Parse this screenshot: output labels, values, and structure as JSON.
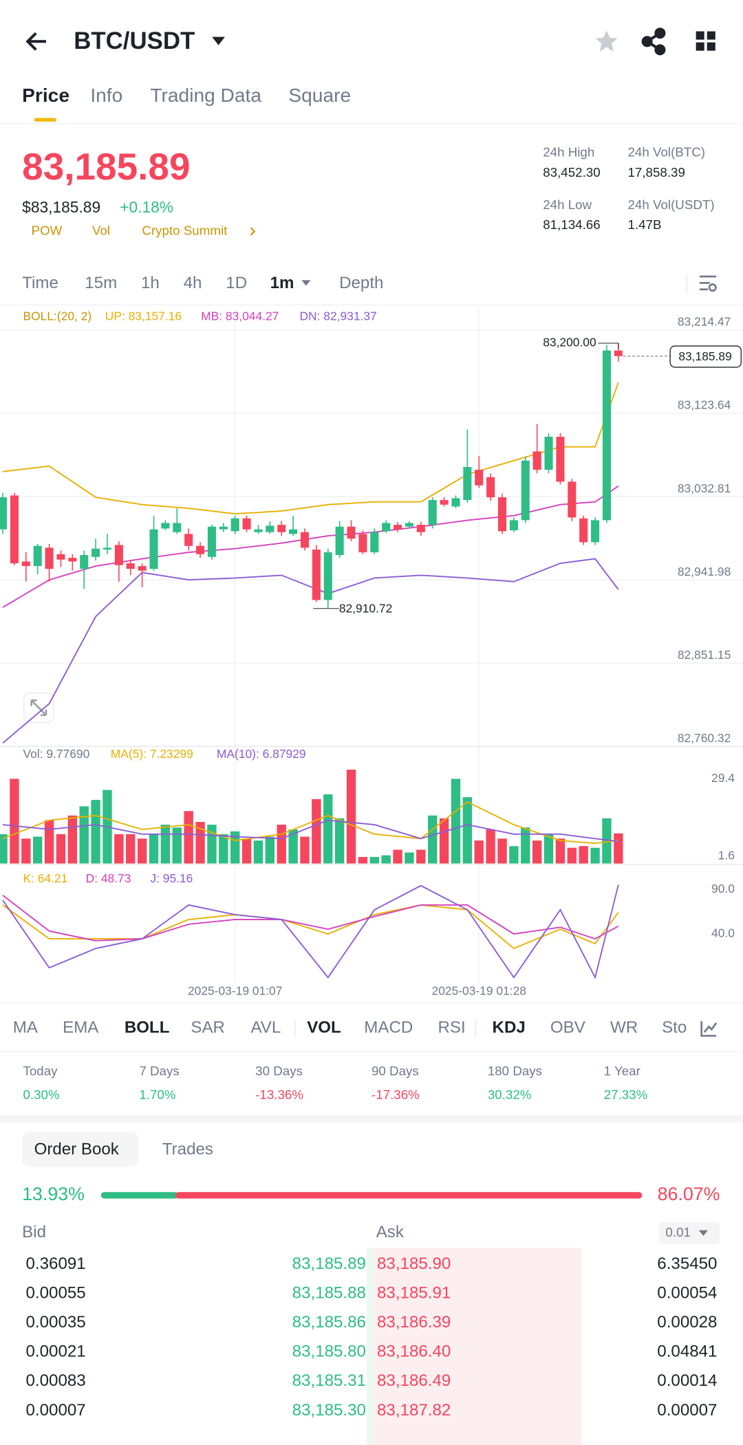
{
  "header": {
    "title": "BTC/USDT"
  },
  "tabs": [
    "Price",
    "Info",
    "Trading Data",
    "Square"
  ],
  "price": {
    "last": "83,185.89",
    "usd": "$83,185.89",
    "change": "+0.18%",
    "tags": [
      "POW",
      "Vol",
      "Crypto Summit"
    ]
  },
  "stats": [
    {
      "label": "24h High",
      "value": "83,452.30"
    },
    {
      "label": "24h Vol(BTC)",
      "value": "17,858.39"
    },
    {
      "label": "24h Low",
      "value": "81,134.66"
    },
    {
      "label": "24h Vol(USDT)",
      "value": "1.47B"
    }
  ],
  "timeframes": [
    "Time",
    "15m",
    "1h",
    "4h",
    "1D",
    "1m",
    "Depth"
  ],
  "active_timeframe": 5,
  "chart_data": [
    {
      "type": "candlestick",
      "legend_title": "BOLL:(20, 2)",
      "up_color": "#2ebd85",
      "down_color": "#f6465d",
      "ylim": [
        82760.32,
        83237.6
      ],
      "yticks": [
        {
          "value": 83214.47,
          "label": "83,214.47"
        },
        {
          "value": 83123.64,
          "label": "83,123.64"
        },
        {
          "value": 83032.81,
          "label": "83,032.81"
        },
        {
          "value": 82941.98,
          "label": "82,941.98"
        },
        {
          "value": 82851.15,
          "label": "82,851.15"
        },
        {
          "value": 82760.32,
          "label": "82,760.32"
        }
      ],
      "xticks": [
        {
          "value": 20,
          "label": "2025-03-19 01:07"
        },
        {
          "value": 41,
          "label": "2025-03-19 01:28"
        }
      ],
      "high": {
        "value": 83200,
        "label": "83,200.00",
        "index": 53
      },
      "low": {
        "value": 82910.72,
        "label": "82,910.72",
        "index": 28
      },
      "last": {
        "value": 83185.89,
        "label": "83,185.89"
      },
      "candles": [
        [
          82997,
          83037,
          82992,
          83032
        ],
        [
          83034,
          83037,
          82958,
          82960
        ],
        [
          82962,
          82972,
          82940,
          82957
        ],
        [
          82957,
          82981,
          82948,
          82979
        ],
        [
          82977,
          82981,
          82940,
          82954
        ],
        [
          82970,
          82974,
          82956,
          82964
        ],
        [
          82966,
          82970,
          82952,
          82962
        ],
        [
          82954,
          82974,
          82932,
          82969
        ],
        [
          82967,
          82987,
          82963,
          82976
        ],
        [
          82975,
          82992,
          82970,
          82977
        ],
        [
          82980,
          82984,
          82940,
          82958
        ],
        [
          82960,
          82964,
          82947,
          82954
        ],
        [
          82957,
          82960,
          82934,
          82952
        ],
        [
          82954,
          83012,
          82952,
          82997
        ],
        [
          82998,
          83007,
          82996,
          83004
        ],
        [
          82994,
          83020,
          82992,
          83004
        ],
        [
          82992,
          82998,
          82974,
          82979
        ],
        [
          82979,
          82983,
          82966,
          82970
        ],
        [
          82967,
          83002,
          82964,
          83000
        ],
        [
          82997,
          83004,
          82994,
          83000
        ],
        [
          82995,
          83012,
          82992,
          83009
        ],
        [
          83009,
          83012,
          82994,
          82997
        ],
        [
          82994,
          83002,
          82992,
          82997
        ],
        [
          82994,
          83006,
          82992,
          83001
        ],
        [
          83002,
          83006,
          82990,
          82994
        ],
        [
          82992,
          83012,
          82990,
          82997
        ],
        [
          82994,
          82998,
          82974,
          82977
        ],
        [
          82975,
          82980,
          82918,
          82920
        ],
        [
          82920,
          82976,
          82910.72,
          82972
        ],
        [
          82969,
          83006,
          82966,
          83000
        ],
        [
          83000,
          83007,
          82984,
          82987
        ],
        [
          82992,
          82996,
          82970,
          82972
        ],
        [
          82972,
          82998,
          82970,
          82994
        ],
        [
          82995,
          83007,
          82993,
          83004
        ],
        [
          83002,
          83005,
          82994,
          82997
        ],
        [
          83000,
          83006,
          82998,
          83004
        ],
        [
          83002,
          83005,
          82990,
          82994
        ],
        [
          83002,
          83032,
          82998,
          83029
        ],
        [
          83029,
          83032,
          83022,
          83024
        ],
        [
          83022,
          83034,
          83020,
          83031
        ],
        [
          83029,
          83106,
          83026,
          83065
        ],
        [
          83062,
          83077,
          83042,
          83045
        ],
        [
          83054,
          83058,
          83028,
          83032
        ],
        [
          83032,
          83036,
          82992,
          82995
        ],
        [
          82996,
          83010,
          82994,
          83007
        ],
        [
          83007,
          83076,
          83004,
          83072
        ],
        [
          83082,
          83112,
          83058,
          83062
        ],
        [
          83062,
          83102,
          83058,
          83098
        ],
        [
          83098,
          83102,
          83046,
          83049
        ],
        [
          83049,
          83052,
          83006,
          83010
        ],
        [
          83009,
          83012,
          82980,
          82983
        ],
        [
          82983,
          83010,
          82980,
          83007
        ],
        [
          83007,
          83198,
          83004,
          83192
        ],
        [
          83192,
          83200,
          83180,
          83185.89
        ]
      ],
      "line_x": [
        0,
        4,
        8,
        12,
        16,
        20,
        24,
        28,
        32,
        36,
        40,
        44,
        48,
        51,
        53
      ],
      "lines": [
        {
          "label": "UP: 83,157.16",
          "color": "#e8b000",
          "values": [
            83060,
            83066,
            83032,
            83024,
            83020,
            83014,
            83017,
            83024,
            83027,
            83027,
            83057,
            83072,
            83087,
            83087,
            83157.16
          ]
        },
        {
          "label": "MB: 83,044.27",
          "color": "#d63fbf",
          "values": [
            82912,
            82942,
            82957,
            82965,
            82972,
            82976,
            82982,
            82990,
            82994,
            83000,
            83007,
            83012,
            83024,
            83027,
            83044.27
          ]
        },
        {
          "label": "DN: 82,931.37",
          "color": "#8b5cd6",
          "values": [
            82764,
            82807,
            82902,
            82950,
            82942,
            82944,
            82947,
            82927,
            82944,
            82947,
            82944,
            82940,
            82960,
            82965,
            82931.37
          ]
        }
      ]
    },
    {
      "type": "bar",
      "legend_title": "Vol: 9.77690",
      "ylim": [
        -1.05,
        34.4
      ],
      "yticks": [
        29.4,
        1.6
      ],
      "values": [
        9.5,
        29.4,
        7.9,
        8.6,
        14.5,
        9.5,
        16.2,
        19.5,
        21.8,
        25.4,
        9.5,
        9.5,
        7.9,
        9.5,
        12.9,
        11.9,
        17.8,
        13.9,
        12.9,
        9.5,
        10.5,
        7.9,
        7.2,
        8.6,
        12.9,
        11.2,
        8.6,
        22.1,
        23.8,
        15.2,
        32.7,
        1.3,
        1.3,
        1.9,
        3.9,
        2.9,
        3.9,
        16.2,
        15.2,
        29.4,
        22.8,
        7.2,
        11.2,
        7.9,
        5.2,
        11.9,
        7.2,
        9.5,
        7.9,
        4.6,
        5.2,
        4.6,
        15.2,
        9.78
      ],
      "line_x": [
        0,
        4,
        8,
        12,
        16,
        20,
        24,
        28,
        32,
        36,
        40,
        44,
        48,
        51,
        53
      ],
      "lines": [
        {
          "label": "MA(5): 7.23299",
          "color": "#e8b000",
          "values": [
            7.9,
            14.5,
            16.2,
            11.2,
            12.9,
            7.2,
            9.5,
            16.2,
            9.5,
            7.9,
            21.1,
            12.9,
            7.2,
            6.2,
            7.23
          ]
        },
        {
          "label": "MA(10): 6.87929",
          "color": "#8b5cd6",
          "values": [
            12.9,
            11.2,
            12.9,
            9.5,
            9.5,
            8.6,
            7.9,
            14.5,
            12.9,
            7.9,
            12.9,
            9.5,
            9.5,
            7.9,
            6.88
          ]
        }
      ]
    },
    {
      "type": "line",
      "ylim": [
        -14.4,
        116.1
      ],
      "yticks": [
        {
          "value": 90,
          "label": "90.0"
        },
        {
          "value": 40,
          "label": "40.0"
        }
      ],
      "line_x": [
        0,
        4,
        8,
        12,
        16,
        20,
        24,
        28,
        32,
        36,
        40,
        44,
        48,
        51,
        53
      ],
      "lines": [
        {
          "label": "K: 64.21",
          "color": "#e8b000",
          "values": [
            72.6,
            34.6,
            34.6,
            34.6,
            56.3,
            61.7,
            56.3,
            40.0,
            61.7,
            72.6,
            67.2,
            23.7,
            45.4,
            29.1,
            64.21
          ]
        },
        {
          "label": "D: 48.73",
          "color": "#d63fbf",
          "values": [
            83.5,
            43.3,
            32.4,
            34.6,
            50.9,
            56.3,
            56.3,
            45.4,
            59.6,
            72.6,
            72.6,
            40.0,
            47.6,
            34.6,
            48.73
          ]
        },
        {
          "label": "J: 95.16",
          "color": "#8b5cd6",
          "values": [
            78.0,
            2.0,
            23.7,
            34.6,
            72.6,
            61.7,
            56.3,
            -8.9,
            67.2,
            94.3,
            67.2,
            -8.9,
            67.2,
            -8.9,
            95.16
          ]
        }
      ]
    }
  ],
  "indicators": {
    "items": [
      "MA",
      "EMA",
      "BOLL",
      "SAR",
      "AVL",
      "VOL",
      "MACD",
      "RSI",
      "KDJ",
      "OBV",
      "WR",
      "Sto"
    ],
    "active": [
      2,
      5,
      8
    ]
  },
  "performance": [
    {
      "label": "Today",
      "value": "0.30%",
      "up": true
    },
    {
      "label": "7 Days",
      "value": "1.70%",
      "up": true
    },
    {
      "label": "30 Days",
      "value": "-13.36%",
      "up": false
    },
    {
      "label": "90 Days",
      "value": "-17.36%",
      "up": false
    },
    {
      "label": "180 Days",
      "value": "30.32%",
      "up": true
    },
    {
      "label": "1 Year",
      "value": "27.33%",
      "up": true
    }
  ],
  "order_book": {
    "tabs": [
      "Order Book",
      "Trades"
    ],
    "bid_ratio": {
      "value": 13.93,
      "label": "13.93%"
    },
    "ask_ratio": {
      "value": 86.07,
      "label": "86.07%"
    },
    "bid_label": "Bid",
    "ask_label": "Ask",
    "step": "0.01",
    "rows": [
      [
        "0.36091",
        "83,185.89",
        "83,185.90",
        "6.35450"
      ],
      [
        "0.00055",
        "83,185.88",
        "83,185.91",
        "0.00054"
      ],
      [
        "0.00035",
        "83,185.86",
        "83,186.39",
        "0.00028"
      ],
      [
        "0.00021",
        "83,185.80",
        "83,186.40",
        "0.04841"
      ],
      [
        "0.00083",
        "83,185.31",
        "83,186.49",
        "0.00014"
      ],
      [
        "0.00007",
        "83,185.30",
        "83,187.82",
        "0.00007"
      ]
    ]
  }
}
